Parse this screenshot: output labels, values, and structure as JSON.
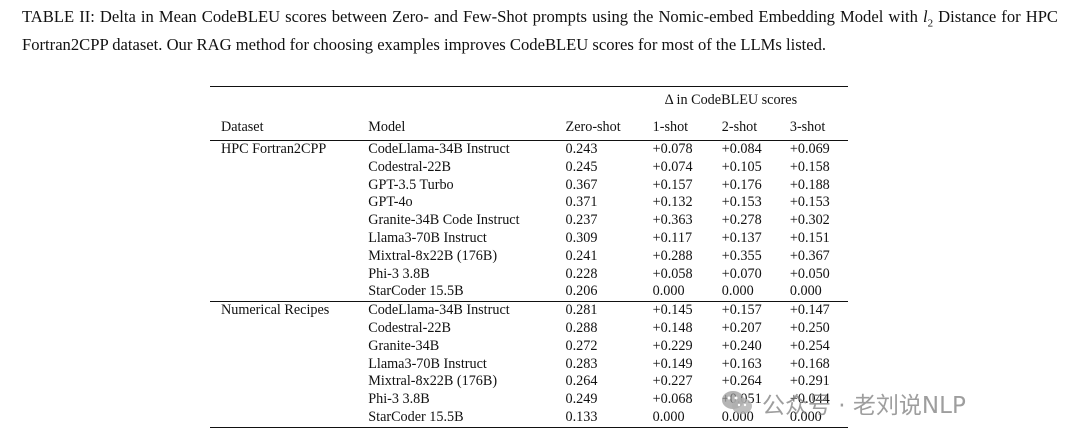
{
  "caption": {
    "before": "TABLE II: Delta in Mean CodeBLEU scores between Zero- and Few-Shot prompts using the Nomic-embed Embedding Model with ",
    "l2_letter": "l",
    "l2_sub": "2",
    "after": " Distance for HPC Fortran2CPP dataset. Our RAG method for choosing examples improves CodeBLEU scores for most of the LLMs listed."
  },
  "table": {
    "delta_header": "Δ in CodeBLEU scores",
    "columns": [
      "Dataset",
      "Model",
      "Zero-shot",
      "1-shot",
      "2-shot",
      "3-shot"
    ],
    "groups": [
      {
        "dataset": "HPC Fortran2CPP",
        "rows": [
          {
            "model": "CodeLlama-34B Instruct",
            "zero": "0.243",
            "s1": "+0.078",
            "s2": "+0.084",
            "s3": "+0.069",
            "bold": []
          },
          {
            "model": "Codestral-22B",
            "zero": "0.245",
            "s1": "+0.074",
            "s2": "+0.105",
            "s3": "+0.158",
            "bold": []
          },
          {
            "model": "GPT-3.5 Turbo",
            "zero": "0.367",
            "s1": "+0.157",
            "s2": "+0.176",
            "s3": "+0.188",
            "bold": []
          },
          {
            "model": "GPT-4o",
            "zero": "0.371",
            "s1": "+0.132",
            "s2": "+0.153",
            "s3": "+0.153",
            "bold": []
          },
          {
            "model": "Granite-34B Code Instruct",
            "zero": "0.237",
            "s1": "+0.363",
            "s2": "+0.278",
            "s3": "+0.302",
            "bold": [
              "s1"
            ]
          },
          {
            "model": "Llama3-70B Instruct",
            "zero": "0.309",
            "s1": "+0.117",
            "s2": "+0.137",
            "s3": "+0.151",
            "bold": []
          },
          {
            "model": "Mixtral-8x22B (176B)",
            "zero": "0.241",
            "s1": "+0.288",
            "s2": "+0.355",
            "s3": "+0.367",
            "bold": [
              "s2",
              "s3"
            ]
          },
          {
            "model": "Phi-3 3.8B",
            "zero": "0.228",
            "s1": "+0.058",
            "s2": "+0.070",
            "s3": "+0.050",
            "bold": []
          },
          {
            "model": "StarCoder 15.5B",
            "zero": "0.206",
            "s1": "0.000",
            "s2": "0.000",
            "s3": "0.000",
            "bold": []
          }
        ]
      },
      {
        "dataset": "Numerical Recipes",
        "rows": [
          {
            "model": "CodeLlama-34B Instruct",
            "zero": "0.281",
            "s1": "+0.145",
            "s2": "+0.157",
            "s3": "+0.147",
            "bold": []
          },
          {
            "model": "Codestral-22B",
            "zero": "0.288",
            "s1": "+0.148",
            "s2": "+0.207",
            "s3": "+0.250",
            "bold": []
          },
          {
            "model": "Granite-34B",
            "zero": "0.272",
            "s1": "+0.229",
            "s2": "+0.240",
            "s3": "+0.254",
            "bold": [
              "s1"
            ]
          },
          {
            "model": "Llama3-70B Instruct",
            "zero": "0.283",
            "s1": "+0.149",
            "s2": "+0.163",
            "s3": "+0.168",
            "bold": []
          },
          {
            "model": "Mixtral-8x22B (176B)",
            "zero": "0.264",
            "s1": "+0.227",
            "s2": "+0.264",
            "s3": "+0.291",
            "bold": [
              "s2",
              "s3"
            ]
          },
          {
            "model": "Phi-3 3.8B",
            "zero": "0.249",
            "s1": "+0.068",
            "s2": "+0.051",
            "s3": "+0.044",
            "bold": []
          },
          {
            "model": "StarCoder 15.5B",
            "zero": "0.133",
            "s1": "0.000",
            "s2": "0.000",
            "s3": "0.000",
            "bold": []
          }
        ]
      }
    ]
  },
  "watermark": {
    "text": "公众号 · 老刘说NLP",
    "icon": "wechat-logo-icon"
  }
}
